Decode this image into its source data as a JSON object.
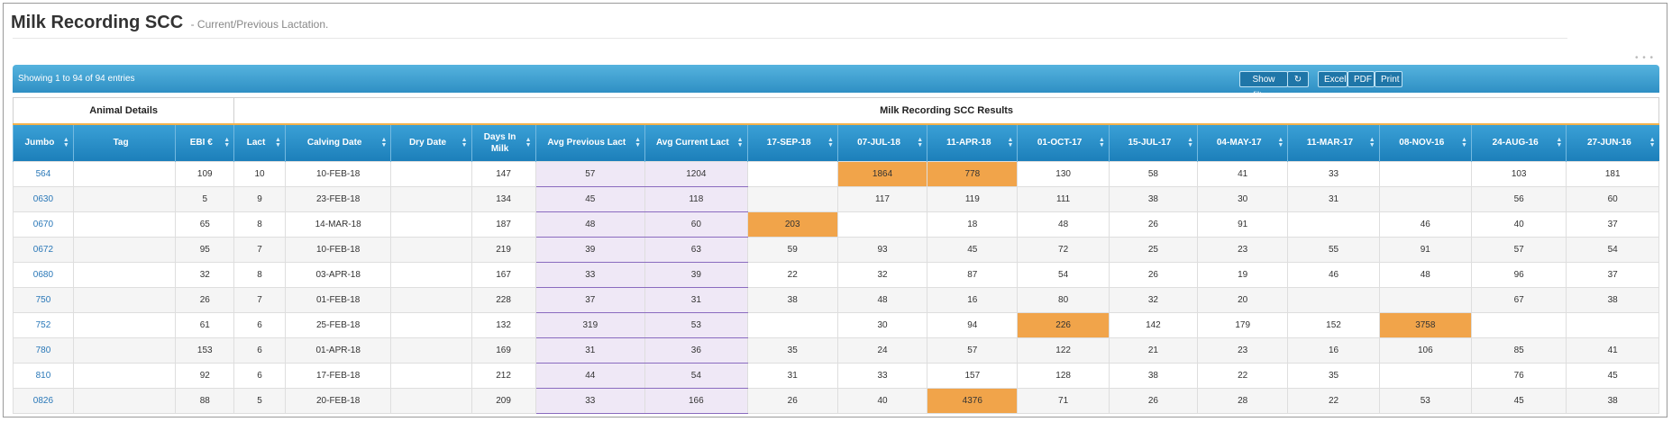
{
  "page": {
    "title": "Milk Recording SCC",
    "subtitle": "- Current/Previous Lactation."
  },
  "toolbar": {
    "entries": "Showing 1 to 94 of 94 entries",
    "show_filters": "Show filters",
    "refresh_icon": "refresh-icon",
    "excel": "Excel",
    "pdf": "PDF",
    "print": "Print"
  },
  "groups": {
    "animal": "Animal Details",
    "results": "Milk Recording SCC Results"
  },
  "columns": [
    {
      "label": "Jumbo",
      "w": 66
    },
    {
      "label": "Tag",
      "w": 112
    },
    {
      "label": "EBI €",
      "w": 64
    },
    {
      "label": "Lact",
      "w": 56
    },
    {
      "label": "Calving Date",
      "w": 116
    },
    {
      "label": "Dry Date",
      "w": 88
    },
    {
      "label": "Days In Milk",
      "w": 70
    },
    {
      "label": "Avg Previous Lact",
      "w": 120
    },
    {
      "label": "Avg Current Lact",
      "w": 112
    },
    {
      "label": "17-SEP-18",
      "w": 99
    },
    {
      "label": "07-JUL-18",
      "w": 98
    },
    {
      "label": "11-APR-18",
      "w": 99
    },
    {
      "label": "01-OCT-17",
      "w": 100
    },
    {
      "label": "15-JUL-17",
      "w": 97
    },
    {
      "label": "04-MAY-17",
      "w": 99
    },
    {
      "label": "11-MAR-17",
      "w": 100
    },
    {
      "label": "08-NOV-16",
      "w": 101
    },
    {
      "label": "24-AUG-16",
      "w": 104
    },
    {
      "label": "27-JUN-16",
      "w": 101
    }
  ],
  "rows": [
    {
      "cells": [
        "564",
        "",
        "109",
        "10",
        "10-FEB-18",
        "",
        "147",
        "57",
        "1204",
        "",
        "1864",
        "778",
        "130",
        "58",
        "41",
        "33",
        "",
        "103",
        "181"
      ],
      "warn": [
        10,
        11
      ]
    },
    {
      "cells": [
        "0630",
        "",
        "5",
        "9",
        "23-FEB-18",
        "",
        "134",
        "45",
        "118",
        "",
        "117",
        "119",
        "111",
        "38",
        "30",
        "31",
        "",
        "56",
        "60"
      ],
      "warn": []
    },
    {
      "cells": [
        "0670",
        "",
        "65",
        "8",
        "14-MAR-18",
        "",
        "187",
        "48",
        "60",
        "203",
        "",
        "18",
        "48",
        "26",
        "91",
        "",
        "46",
        "40",
        "37"
      ],
      "warn": [
        9
      ]
    },
    {
      "cells": [
        "0672",
        "",
        "95",
        "7",
        "10-FEB-18",
        "",
        "219",
        "39",
        "63",
        "59",
        "93",
        "45",
        "72",
        "25",
        "23",
        "55",
        "91",
        "57",
        "54"
      ],
      "warn": []
    },
    {
      "cells": [
        "0680",
        "",
        "32",
        "8",
        "03-APR-18",
        "",
        "167",
        "33",
        "39",
        "22",
        "32",
        "87",
        "54",
        "26",
        "19",
        "46",
        "48",
        "96",
        "37"
      ],
      "warn": []
    },
    {
      "cells": [
        "750",
        "",
        "26",
        "7",
        "01-FEB-18",
        "",
        "228",
        "37",
        "31",
        "38",
        "48",
        "16",
        "80",
        "32",
        "20",
        "",
        "",
        "67",
        "38"
      ],
      "warn": []
    },
    {
      "cells": [
        "752",
        "",
        "61",
        "6",
        "25-FEB-18",
        "",
        "132",
        "319",
        "53",
        "",
        "30",
        "94",
        "226",
        "142",
        "179",
        "152",
        "3758",
        "",
        ""
      ],
      "warn": [
        12,
        16
      ]
    },
    {
      "cells": [
        "780",
        "",
        "153",
        "6",
        "01-APR-18",
        "",
        "169",
        "31",
        "36",
        "35",
        "24",
        "57",
        "122",
        "21",
        "23",
        "16",
        "106",
        "85",
        "41"
      ],
      "warn": []
    },
    {
      "cells": [
        "810",
        "",
        "92",
        "6",
        "17-FEB-18",
        "",
        "212",
        "44",
        "54",
        "31",
        "33",
        "157",
        "128",
        "38",
        "22",
        "35",
        "",
        "76",
        "45"
      ],
      "warn": []
    },
    {
      "cells": [
        "0826",
        "",
        "88",
        "5",
        "20-FEB-18",
        "",
        "209",
        "33",
        "166",
        "26",
        "40",
        "4376",
        "71",
        "26",
        "28",
        "22",
        "53",
        "45",
        "38"
      ],
      "warn": [
        11
      ]
    }
  ]
}
